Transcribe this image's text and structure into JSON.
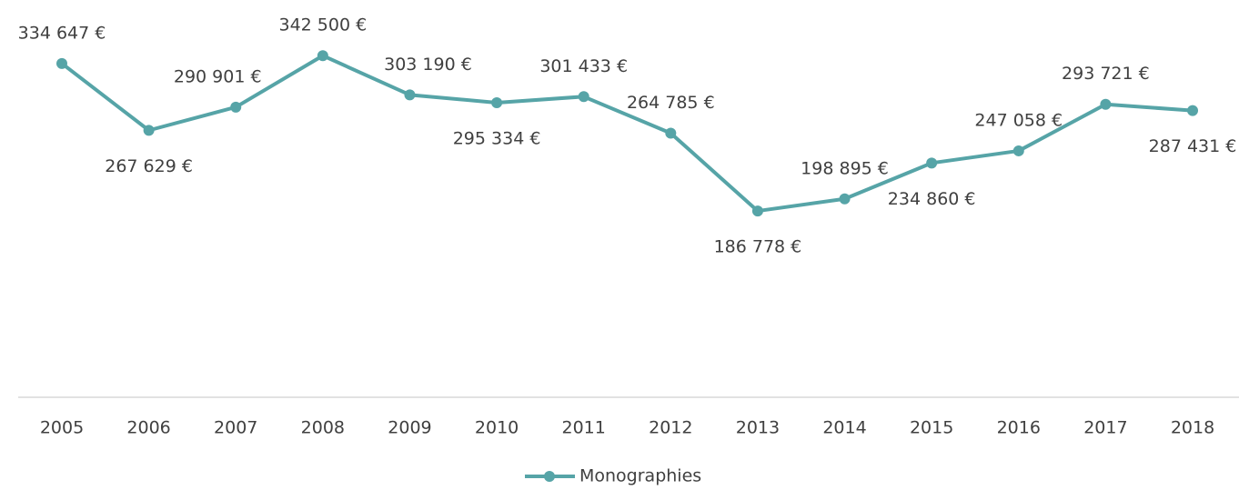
{
  "chart_data": {
    "type": "line",
    "categories": [
      "2005",
      "2006",
      "2007",
      "2008",
      "2009",
      "2010",
      "2011",
      "2012",
      "2013",
      "2014",
      "2015",
      "2016",
      "2017",
      "2018"
    ],
    "series": [
      {
        "name": "Monographies",
        "color": "#56a4a7",
        "values": [
          334647,
          267629,
          290901,
          342500,
          303190,
          295334,
          301433,
          264785,
          186778,
          198895,
          234860,
          247058,
          293721,
          287431
        ],
        "value_labels": [
          "334 647 €",
          "267 629 €",
          "290 901 €",
          "342 500 €",
          "303 190 €",
          "295 334 €",
          "301 433 €",
          "264 785 €",
          "186 778 €",
          "198 895 €",
          "234 860 €",
          "247 058 €",
          "293 721 €",
          "287 431 €"
        ]
      }
    ],
    "ylim": [
      0,
      350000
    ],
    "legend": "bottom"
  }
}
